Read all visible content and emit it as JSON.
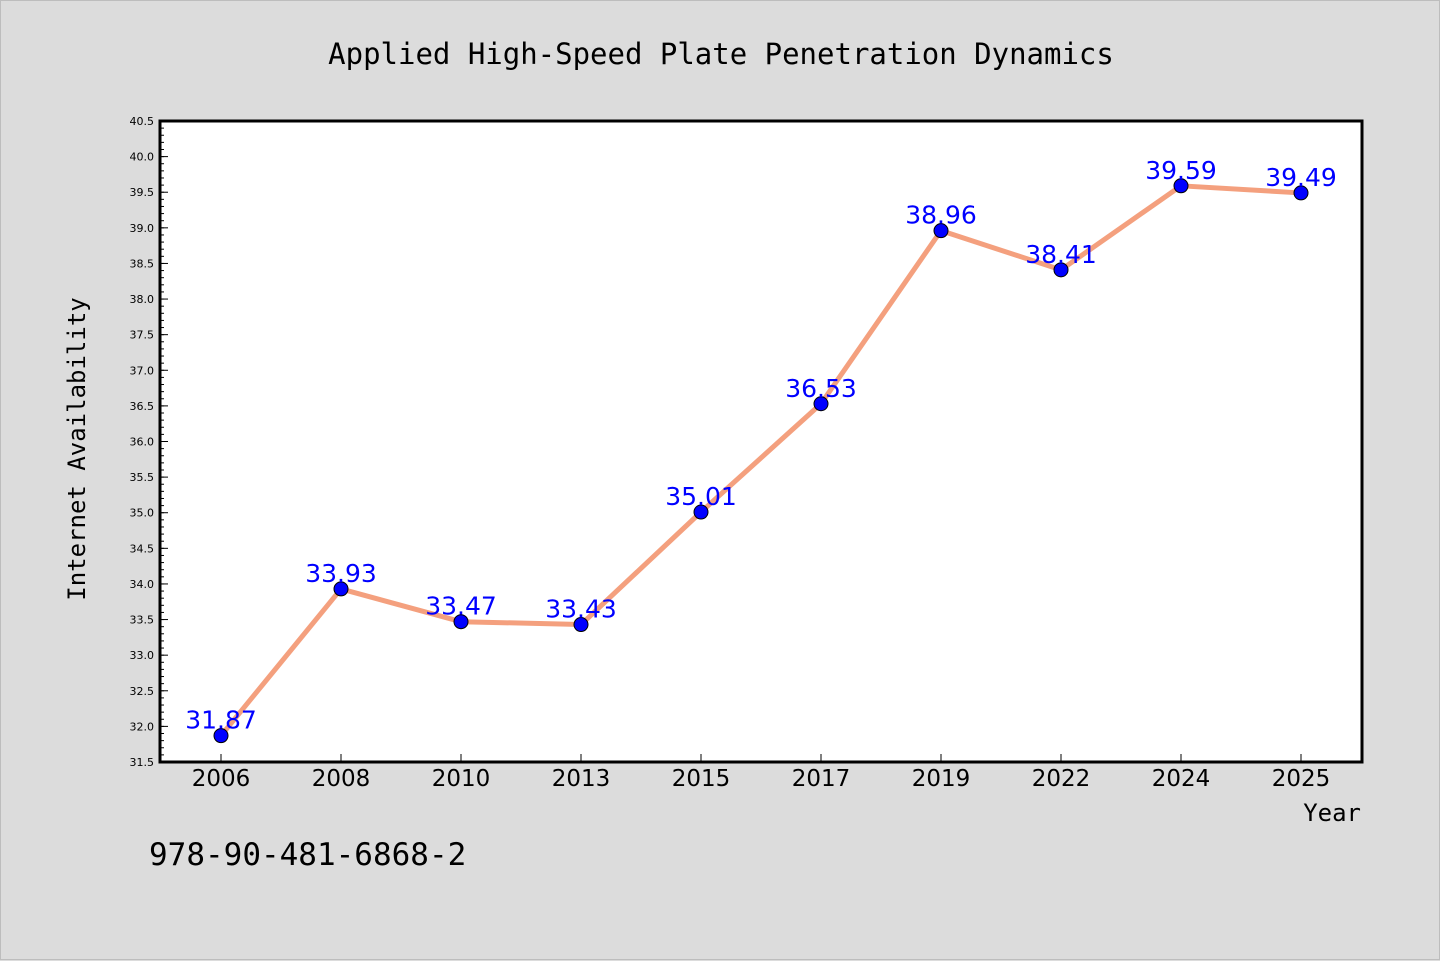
{
  "chart_data": {
    "type": "line",
    "title": "Applied High-Speed Plate Penetration Dynamics",
    "xlabel": "Year",
    "ylabel": "Internet Availability",
    "categories": [
      "2006",
      "2008",
      "2010",
      "2013",
      "2015",
      "2017",
      "2019",
      "2022",
      "2024",
      "2025"
    ],
    "values": [
      31.87,
      33.93,
      33.47,
      33.43,
      35.01,
      36.53,
      38.96,
      38.41,
      39.59,
      39.49
    ],
    "data_labels": [
      "31.87",
      "33.93",
      "33.47",
      "33.43",
      "35.01",
      "36.53",
      "38.96",
      "38.41",
      "39.59",
      "39.49"
    ],
    "ylim": [
      31.5,
      40.5
    ],
    "yticks": [
      "31.5",
      "32.0",
      "32.5",
      "33.0",
      "33.5",
      "34.0",
      "34.5",
      "35.0",
      "35.5",
      "36.0",
      "36.5",
      "37.0",
      "37.5",
      "38.0",
      "38.5",
      "39.0",
      "39.5",
      "40.0",
      "40.5"
    ],
    "ytick_values": [
      31.5,
      32.0,
      32.5,
      33.0,
      33.5,
      34.0,
      34.5,
      35.0,
      35.5,
      36.0,
      36.5,
      37.0,
      37.5,
      38.0,
      38.5,
      39.0,
      39.5,
      40.0,
      40.5
    ],
    "grid": false,
    "colors": {
      "line": "#f4a07e",
      "marker": "#0000ff",
      "label": "#0000ff",
      "background": "#dcdcdc",
      "plot_background": "#ffffff"
    }
  },
  "footer_text": "978-90-481-6868-2"
}
